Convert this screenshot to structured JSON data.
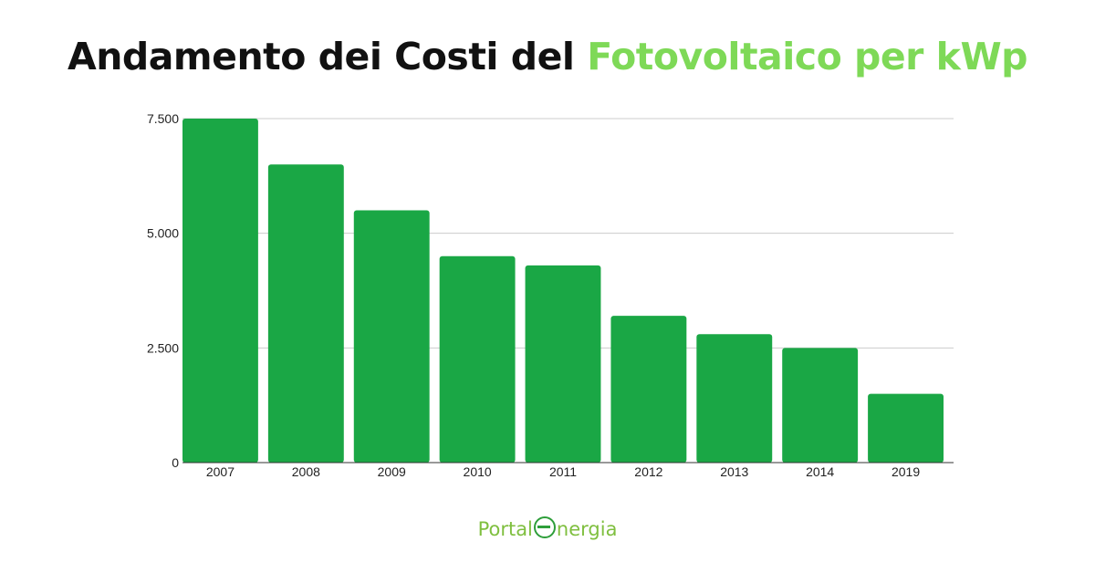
{
  "title": {
    "part1": "Andamento dei Costi del ",
    "part2": "Fotovoltaico per kWp"
  },
  "logo": {
    "text_before": "Portal",
    "text_after": "nergia",
    "mark": "leaf-e-icon"
  },
  "colors": {
    "bar": "#1aa745",
    "title_accent": "#7ed957",
    "grid": "#cccccc"
  },
  "chart_data": {
    "type": "bar",
    "categories": [
      "2007",
      "2008",
      "2009",
      "2010",
      "2011",
      "2012",
      "2013",
      "2014",
      "2019"
    ],
    "values": [
      7500,
      6500,
      5500,
      4500,
      4300,
      3200,
      2800,
      2500,
      1500
    ],
    "y_ticks": [
      {
        "value": 0,
        "label": "0"
      },
      {
        "value": 2500,
        "label": "2.500"
      },
      {
        "value": 5000,
        "label": "5.000"
      },
      {
        "value": 7500,
        "label": "7.500"
      }
    ],
    "ylim": [
      0,
      7500
    ],
    "grid": true,
    "legend": "none"
  }
}
